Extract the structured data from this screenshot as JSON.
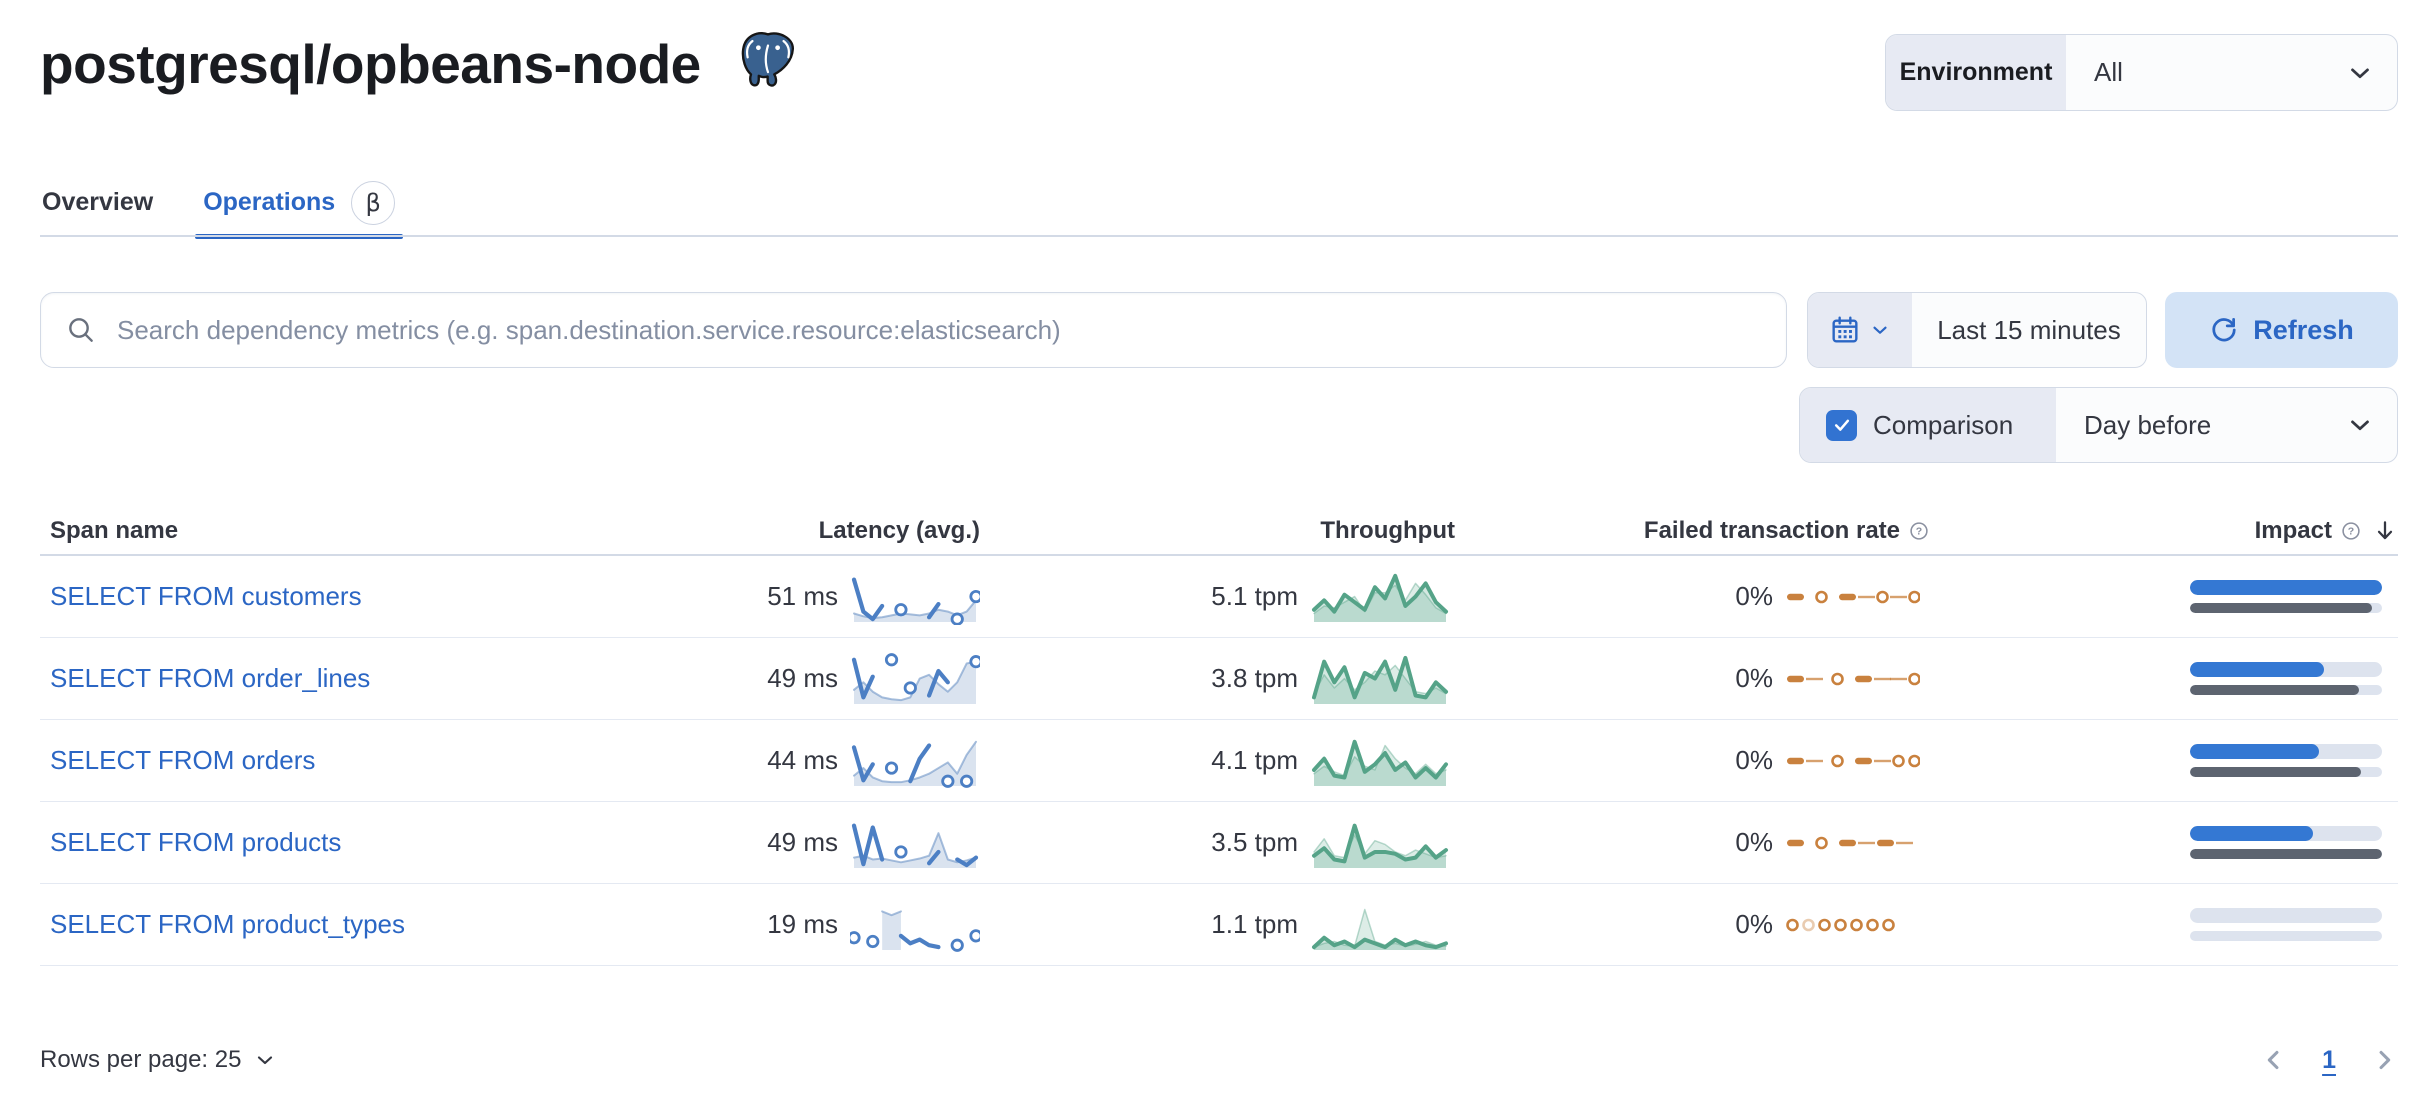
{
  "page": {
    "title": "postgresql/opbeans-node",
    "icon": "postgresql-elephant-icon"
  },
  "environment": {
    "label": "Environment",
    "value": "All"
  },
  "tabs": [
    {
      "label": "Overview",
      "active": false
    },
    {
      "label": "Operations",
      "active": true,
      "badge": "β"
    }
  ],
  "search": {
    "placeholder": "Search dependency metrics (e.g. span.destination.service.resource:elasticsearch)"
  },
  "time_controls": {
    "range_label": "Last 15 minutes",
    "refresh_label": "Refresh"
  },
  "comparison": {
    "label": "Comparison",
    "checked": true,
    "value": "Day before"
  },
  "table": {
    "headers": {
      "span": "Span name",
      "latency": "Latency (avg.)",
      "throughput": "Throughput",
      "failed_rate": "Failed transaction rate",
      "impact": "Impact"
    },
    "sort": {
      "column": "impact",
      "direction": "desc"
    },
    "rows": [
      {
        "span": "SELECT FROM customers",
        "latency": "51 ms",
        "throughput": "5.1 tpm",
        "failed_rate": "0%",
        "impact": 1.0,
        "impact_previous": 0.95,
        "latency_series": {
          "current": [
            44,
            10,
            2,
            16,
            null,
            12,
            null,
            null,
            4,
            18,
            null,
            2,
            null,
            26
          ],
          "previous": [
            8,
            5,
            3,
            4,
            6,
            8,
            7,
            6,
            8,
            12,
            10,
            6,
            10,
            22
          ]
        },
        "throughput_series": {
          "current": [
            12,
            22,
            10,
            28,
            20,
            12,
            36,
            24,
            48,
            16,
            26,
            40,
            20,
            10
          ],
          "previous": [
            8,
            16,
            14,
            20,
            26,
            10,
            30,
            30,
            38,
            22,
            40,
            28,
            14,
            8
          ]
        },
        "failed_rate_pattern": [
          "dash",
          "gap",
          "dot",
          "gap",
          "dash",
          "thin",
          "dot",
          "thin",
          "dot"
        ]
      },
      {
        "span": "SELECT FROM order_lines",
        "latency": "49 ms",
        "throughput": "3.8 tpm",
        "failed_rate": "0%",
        "impact": 0.7,
        "impact_previous": 0.88,
        "latency_series": {
          "current": [
            46,
            6,
            28,
            null,
            46,
            null,
            16,
            null,
            8,
            34,
            22,
            null,
            null,
            44
          ],
          "previous": [
            14,
            22,
            12,
            6,
            4,
            3,
            6,
            26,
            30,
            20,
            12,
            22,
            42,
            44
          ]
        },
        "throughput_series": {
          "current": [
            6,
            44,
            22,
            38,
            6,
            32,
            26,
            44,
            14,
            48,
            8,
            6,
            22,
            12
          ],
          "previous": [
            10,
            30,
            16,
            26,
            14,
            22,
            34,
            30,
            40,
            26,
            12,
            10,
            16,
            10
          ]
        },
        "failed_rate_pattern": [
          "dash",
          "thin",
          "gap",
          "dot",
          "gap",
          "dash",
          "thin",
          "thin",
          "dot"
        ]
      },
      {
        "span": "SELECT FROM orders",
        "latency": "44 ms",
        "throughput": "4.1 tpm",
        "failed_rate": "0%",
        "impact": 0.67,
        "impact_previous": 0.89,
        "latency_series": {
          "current": [
            40,
            5,
            22,
            null,
            18,
            null,
            4,
            28,
            42,
            null,
            4,
            null,
            4,
            null
          ],
          "previous": [
            10,
            18,
            8,
            4,
            3,
            3,
            5,
            8,
            12,
            18,
            24,
            12,
            32,
            46
          ]
        },
        "throughput_series": {
          "current": [
            16,
            28,
            10,
            8,
            46,
            14,
            22,
            34,
            16,
            24,
            8,
            18,
            8,
            22
          ],
          "previous": [
            12,
            20,
            14,
            10,
            30,
            20,
            16,
            42,
            28,
            18,
            12,
            22,
            12,
            16
          ]
        },
        "failed_rate_pattern": [
          "dash",
          "thin",
          "gap",
          "dot",
          "gap",
          "dash",
          "thin",
          "dot",
          "dot"
        ]
      },
      {
        "span": "SELECT FROM products",
        "latency": "49 ms",
        "throughput": "3.5 tpm",
        "failed_rate": "0%",
        "impact": 0.64,
        "impact_previous": 1.0,
        "latency_series": {
          "current": [
            44,
            3,
            42,
            8,
            null,
            16,
            null,
            null,
            4,
            16,
            null,
            8,
            2,
            10
          ],
          "previous": [
            10,
            12,
            8,
            9,
            7,
            5,
            7,
            9,
            12,
            36,
            8,
            5,
            7,
            10
          ]
        },
        "throughput_series": {
          "current": [
            12,
            20,
            8,
            6,
            44,
            10,
            16,
            16,
            14,
            8,
            10,
            22,
            10,
            18
          ],
          "previous": [
            16,
            30,
            12,
            10,
            34,
            14,
            28,
            24,
            16,
            12,
            18,
            14,
            10,
            12
          ]
        },
        "failed_rate_pattern": [
          "dash",
          "gap",
          "dot",
          "gap",
          "dash",
          "thin",
          "dash",
          "thin"
        ]
      },
      {
        "span": "SELECT FROM product_types",
        "latency": "19 ms",
        "throughput": "1.1 tpm",
        "failed_rate": "0%",
        "impact": 0.0,
        "impact_previous": 0.0,
        "latency_series": {
          "current": [
            12,
            null,
            8,
            null,
            null,
            14,
            6,
            10,
            4,
            2,
            null,
            4,
            null,
            14
          ],
          "previous": [
            null,
            null,
            null,
            40,
            36,
            40,
            null,
            null,
            null,
            null,
            null,
            null,
            null,
            null
          ]
        },
        "throughput_series": {
          "current": [
            2,
            12,
            4,
            8,
            2,
            10,
            6,
            2,
            10,
            4,
            8,
            4,
            2,
            6
          ],
          "previous": [
            2,
            6,
            8,
            4,
            3,
            42,
            8,
            4,
            6,
            3,
            5,
            8,
            4,
            3
          ]
        },
        "failed_rate_pattern": [
          "dot",
          "dotlight",
          "dot",
          "dot",
          "dot",
          "dot",
          "dot"
        ]
      }
    ]
  },
  "footer": {
    "rows_per_page_label": "Rows per page: 25",
    "current_page": "1"
  },
  "colors": {
    "link_blue": "#2b66c4",
    "impact_bar_blue": "#3478d3",
    "impact_bar_gray": "#5d6470",
    "impact_track": "#dde3ee",
    "latency_spark_blue": "#4c7fc4",
    "throughput_spark_green": "#55a388",
    "failed_rate_orange": "#c9813e",
    "refresh_bg": "#d3e3f6",
    "segment_bg": "#e7eaf3",
    "border_gray": "#d3dae6",
    "text": "#343741",
    "title": "#1a1c21"
  }
}
